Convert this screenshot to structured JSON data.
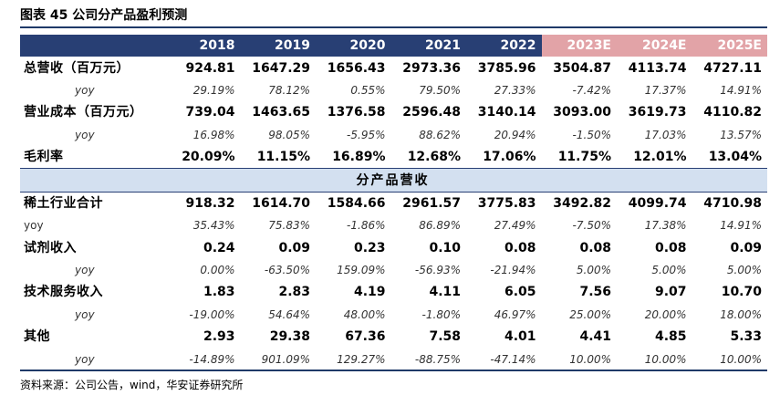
{
  "title": "图表 45 公司分产品盈利预测",
  "years": [
    "2018",
    "2019",
    "2020",
    "2021",
    "2022",
    "2023E",
    "2024E",
    "2025E"
  ],
  "rows": [
    {
      "label": "总营收（百万元）",
      "values": [
        "924.81",
        "1647.29",
        "1656.43",
        "2973.36",
        "3785.96",
        "3504.87",
        "4113.74",
        "4727.11"
      ]
    },
    {
      "label": "yoy",
      "values": [
        "29.19%",
        "78.12%",
        "0.55%",
        "79.50%",
        "27.33%",
        "-7.42%",
        "17.37%",
        "14.91%"
      ]
    },
    {
      "label": "营业成本（百万元）",
      "values": [
        "739.04",
        "1463.65",
        "1376.58",
        "2596.48",
        "3140.14",
        "3093.00",
        "3619.73",
        "4110.82"
      ]
    },
    {
      "label": "yoy",
      "values": [
        "16.98%",
        "98.05%",
        "-5.95%",
        "88.62%",
        "20.94%",
        "-1.50%",
        "17.03%",
        "13.57%"
      ]
    },
    {
      "label": "毛利率",
      "values": [
        "20.09%",
        "11.15%",
        "16.89%",
        "12.68%",
        "17.06%",
        "11.75%",
        "12.01%",
        "13.04%"
      ]
    }
  ],
  "section": "分产品营收",
  "products": [
    {
      "label": "稀土行业合计",
      "values": [
        "918.32",
        "1614.70",
        "1584.66",
        "2961.57",
        "3775.83",
        "3492.82",
        "4099.74",
        "4710.98"
      ]
    },
    {
      "label": "yoy",
      "values": [
        "35.43%",
        "75.83%",
        "-1.86%",
        "86.89%",
        "27.49%",
        "-7.50%",
        "17.38%",
        "14.91%"
      ]
    },
    {
      "label": "试剂收入",
      "values": [
        "0.24",
        "0.09",
        "0.23",
        "0.10",
        "0.08",
        "0.08",
        "0.08",
        "0.09"
      ]
    },
    {
      "label": "yoy",
      "values": [
        "0.00%",
        "-63.50%",
        "159.09%",
        "-56.93%",
        "-21.94%",
        "5.00%",
        "5.00%",
        "5.00%"
      ]
    },
    {
      "label": "技术服务收入",
      "values": [
        "1.83",
        "2.83",
        "4.19",
        "4.11",
        "6.05",
        "7.56",
        "9.07",
        "10.70"
      ]
    },
    {
      "label": "yoy",
      "values": [
        "-19.00%",
        "54.64%",
        "48.00%",
        "-1.80%",
        "46.97%",
        "25.00%",
        "20.00%",
        "18.00%"
      ]
    },
    {
      "label": "其他",
      "values": [
        "2.93",
        "29.38",
        "67.36",
        "7.58",
        "4.01",
        "4.41",
        "4.85",
        "5.33"
      ]
    },
    {
      "label": "yoy",
      "values": [
        "-14.89%",
        "901.09%",
        "129.27%",
        "-88.75%",
        "-47.14%",
        "10.00%",
        "10.00%",
        "10.00%"
      ]
    }
  ],
  "source": "资料来源：公司公告，wind，华安证券研究所",
  "colors": {
    "header_actual": "#283f74",
    "header_estimate": "#e2a3a7",
    "section_bg": "#d3e0f0"
  }
}
